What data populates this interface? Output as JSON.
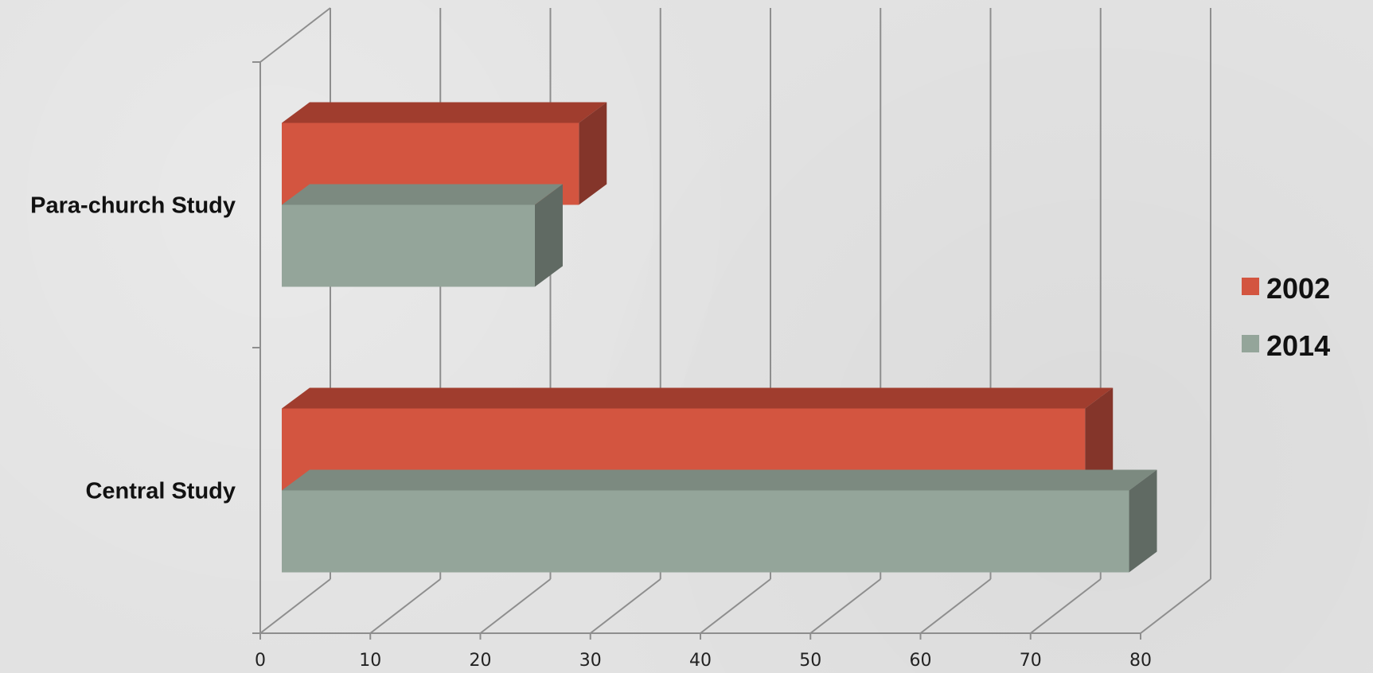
{
  "chart_data": {
    "type": "bar",
    "orientation": "horizontal",
    "style": "3d",
    "categories": [
      "Para-church Study",
      "Central Study"
    ],
    "series": [
      {
        "name": "2002",
        "values": [
          27,
          73
        ],
        "color": "#d35540",
        "top_color": "#a03d2e",
        "side_color": "#84352a"
      },
      {
        "name": "2014",
        "values": [
          23,
          77
        ],
        "color": "#94a59a",
        "top_color": "#7c8a80",
        "side_color": "#606a63"
      }
    ],
    "title": "",
    "xlabel": "",
    "ylabel": "",
    "xlim": [
      0,
      80
    ],
    "xticks": [
      "0",
      "10",
      "20",
      "30",
      "40",
      "50",
      "60",
      "70",
      "80"
    ],
    "grid": true,
    "legend_position": "right"
  }
}
